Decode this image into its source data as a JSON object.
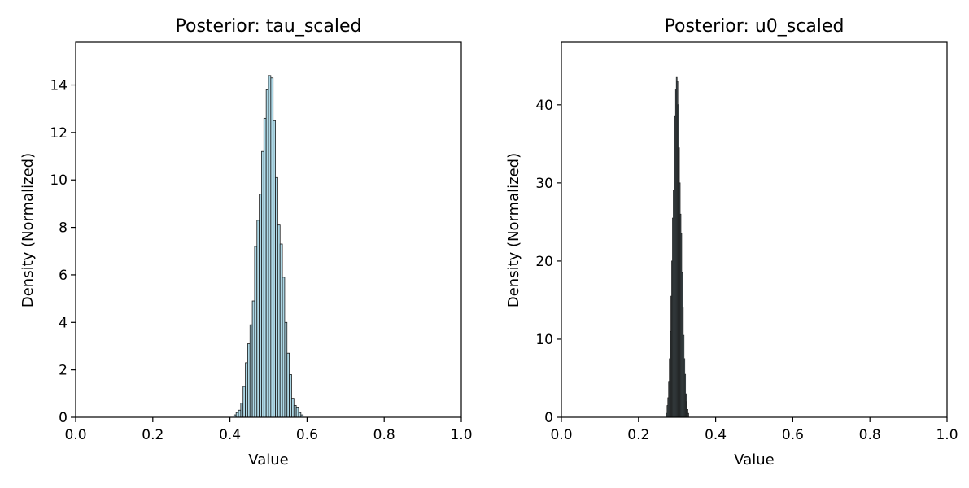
{
  "chart_data": [
    {
      "type": "histogram",
      "title": "Posterior: tau_scaled",
      "xlabel": "Value",
      "ylabel": "Density (Normalized)",
      "xlim": [
        0.0,
        1.0
      ],
      "ylim": [
        0,
        15.8
      ],
      "xticks": [
        "0.0",
        "0.2",
        "0.4",
        "0.6",
        "0.8",
        "1.0"
      ],
      "yticks": [
        "0",
        "2",
        "4",
        "6",
        "8",
        "10",
        "12",
        "14"
      ],
      "bar_fill": "#add8e6",
      "bar_edge": "#1a1a1a",
      "grid": false,
      "bins": {
        "x": [
          0.41,
          0.416,
          0.422,
          0.428,
          0.434,
          0.44,
          0.446,
          0.452,
          0.458,
          0.464,
          0.47,
          0.476,
          0.482,
          0.488,
          0.494,
          0.5,
          0.506,
          0.512,
          0.518,
          0.524,
          0.53,
          0.536,
          0.542,
          0.548,
          0.554,
          0.56,
          0.566,
          0.572,
          0.578,
          0.584
        ],
        "values": [
          0.1,
          0.2,
          0.3,
          0.6,
          1.3,
          2.3,
          3.1,
          3.9,
          4.9,
          7.2,
          8.3,
          9.4,
          11.2,
          12.6,
          13.8,
          14.4,
          14.3,
          12.5,
          10.1,
          8.1,
          7.3,
          5.9,
          4.0,
          2.7,
          1.8,
          0.8,
          0.5,
          0.4,
          0.2,
          0.1
        ],
        "width": 0.006
      }
    },
    {
      "type": "histogram",
      "title": "Posterior: u0_scaled",
      "xlabel": "Value",
      "ylabel": "Density (Normalized)",
      "xlim": [
        0.0,
        1.0
      ],
      "ylim": [
        0,
        48
      ],
      "xticks": [
        "0.0",
        "0.2",
        "0.4",
        "0.6",
        "0.8",
        "1.0"
      ],
      "yticks": [
        "0",
        "10",
        "20",
        "30",
        "40"
      ],
      "bar_fill": "#add8e6",
      "bar_edge": "#1a1a1a",
      "grid": false,
      "bins": {
        "x": [
          0.272,
          0.274,
          0.276,
          0.278,
          0.28,
          0.282,
          0.284,
          0.286,
          0.288,
          0.29,
          0.292,
          0.294,
          0.296,
          0.298,
          0.3,
          0.302,
          0.304,
          0.306,
          0.308,
          0.31,
          0.312,
          0.314,
          0.316,
          0.318,
          0.32,
          0.322,
          0.324,
          0.326,
          0.328
        ],
        "values": [
          0.5,
          1.5,
          2.5,
          4.5,
          7.5,
          11.0,
          15.5,
          20.0,
          25.5,
          29.0,
          33.0,
          38.5,
          42.0,
          43.5,
          43.0,
          40.0,
          34.5,
          30.0,
          26.0,
          23.5,
          18.5,
          14.0,
          10.5,
          7.5,
          5.5,
          3.0,
          2.0,
          1.0,
          0.5
        ],
        "width": 0.002
      }
    }
  ]
}
